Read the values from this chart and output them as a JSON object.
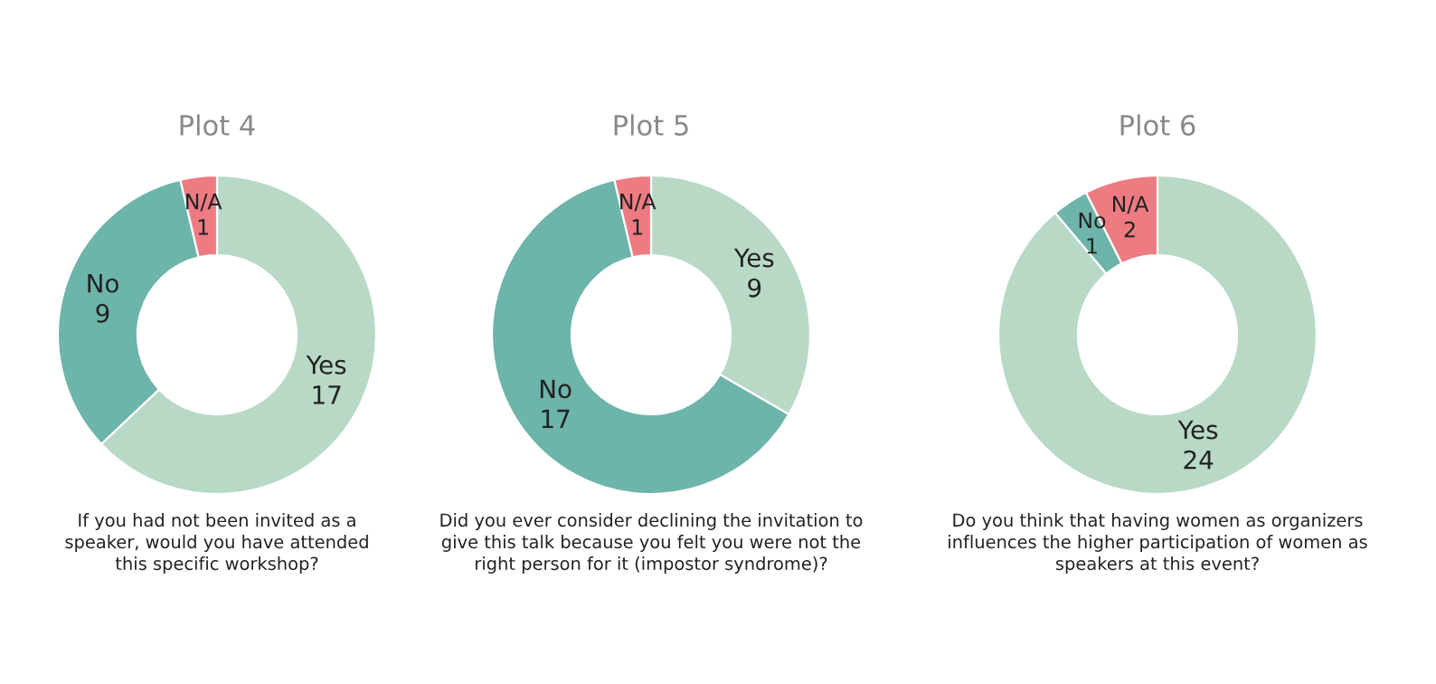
{
  "chart_data": [
    {
      "type": "donut",
      "title": "Plot 4",
      "categories": [
        "Yes",
        "No",
        "N/A"
      ],
      "values": [
        17,
        9,
        1
      ],
      "colors": [
        "#b8d9c6",
        "#6db4aa",
        "#ee7b82"
      ],
      "data_labels": true,
      "xlabel": "If you had not been invited as a\nspeaker, would you have attended\nthis specific workshop?"
    },
    {
      "type": "donut",
      "title": "Plot 5",
      "categories": [
        "Yes",
        "No",
        "N/A"
      ],
      "values": [
        9,
        17,
        1
      ],
      "colors": [
        "#b8d9c6",
        "#6db4aa",
        "#ee7b82"
      ],
      "data_labels": true,
      "xlabel": "Did you ever consider declining the invitation to\ngive this talk because you felt you were not the\nright person for it (impostor syndrome)?"
    },
    {
      "type": "donut",
      "title": "Plot 6",
      "categories": [
        "Yes",
        "No",
        "N/A"
      ],
      "values": [
        24,
        1,
        2
      ],
      "colors": [
        "#b8d9c6",
        "#6db4aa",
        "#ee7b82"
      ],
      "data_labels": true,
      "xlabel": "Do you think that having women as organizers\ninfluences the higher participation of women as\nspeakers at this event?"
    }
  ]
}
